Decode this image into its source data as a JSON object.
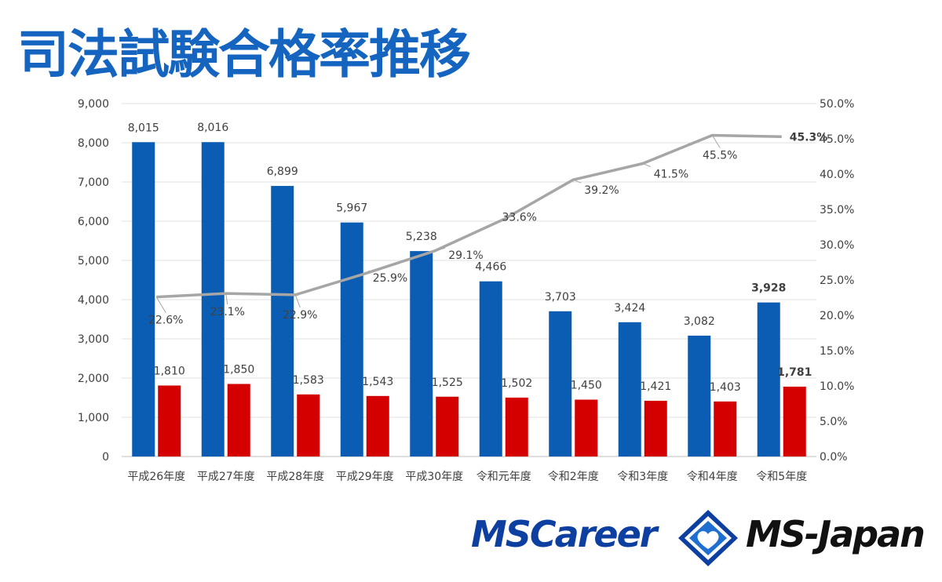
{
  "title": "司法試験合格率推移",
  "colors": {
    "title": "#1565c0",
    "applicants": "#0b5db3",
    "passers": "#d40000",
    "rate": "#a6a6a6",
    "grid": "#e0e0e0",
    "label": "#404040"
  },
  "chart_data": {
    "type": "bar",
    "categories": [
      "平成26年度",
      "平成27年度",
      "平成28年度",
      "平成29年度",
      "平成30年度",
      "令和元年度",
      "令和2年度",
      "令和3年度",
      "令和4年度",
      "令和5年度"
    ],
    "series": [
      {
        "type": "bar",
        "axis": "left",
        "values": [
          8015,
          8016,
          6899,
          5967,
          5238,
          4466,
          3703,
          3424,
          3082,
          3928
        ],
        "labels": [
          "8,015",
          "8,016",
          "6,899",
          "5,967",
          "5,238",
          "4,466",
          "3,703",
          "3,424",
          "3,082",
          "3,928"
        ]
      },
      {
        "type": "bar",
        "axis": "left",
        "values": [
          1810,
          1850,
          1583,
          1543,
          1525,
          1502,
          1450,
          1421,
          1403,
          1781
        ],
        "labels": [
          "1,810",
          "1,850",
          "1,583",
          "1,543",
          "1,525",
          "1,502",
          "1,450",
          "1,421",
          "1,403",
          "1,781"
        ]
      },
      {
        "type": "line",
        "axis": "right",
        "values": [
          22.6,
          23.1,
          22.9,
          25.9,
          29.1,
          33.6,
          39.2,
          41.5,
          45.5,
          45.3
        ],
        "labels": [
          "22.6%",
          "23.1%",
          "22.9%",
          "25.9%",
          "29.1%",
          "33.6%",
          "39.2%",
          "41.5%",
          "45.5%",
          "45.3%"
        ]
      }
    ],
    "y_left": {
      "range": [
        0,
        9000
      ],
      "ticks": [
        "0",
        "1,000",
        "2,000",
        "3,000",
        "4,000",
        "5,000",
        "6,000",
        "7,000",
        "8,000",
        "9,000"
      ]
    },
    "y_right": {
      "range": [
        0,
        50
      ],
      "ticks": [
        "0.0%",
        "5.0%",
        "10.0%",
        "15.0%",
        "20.0%",
        "25.0%",
        "30.0%",
        "35.0%",
        "40.0%",
        "45.0%",
        "50.0%"
      ]
    },
    "grid": true,
    "legend": "none"
  },
  "logos": {
    "left": "MSCareer",
    "right": "MS-Japan",
    "mark_icon": "heart-diamond-icon"
  }
}
